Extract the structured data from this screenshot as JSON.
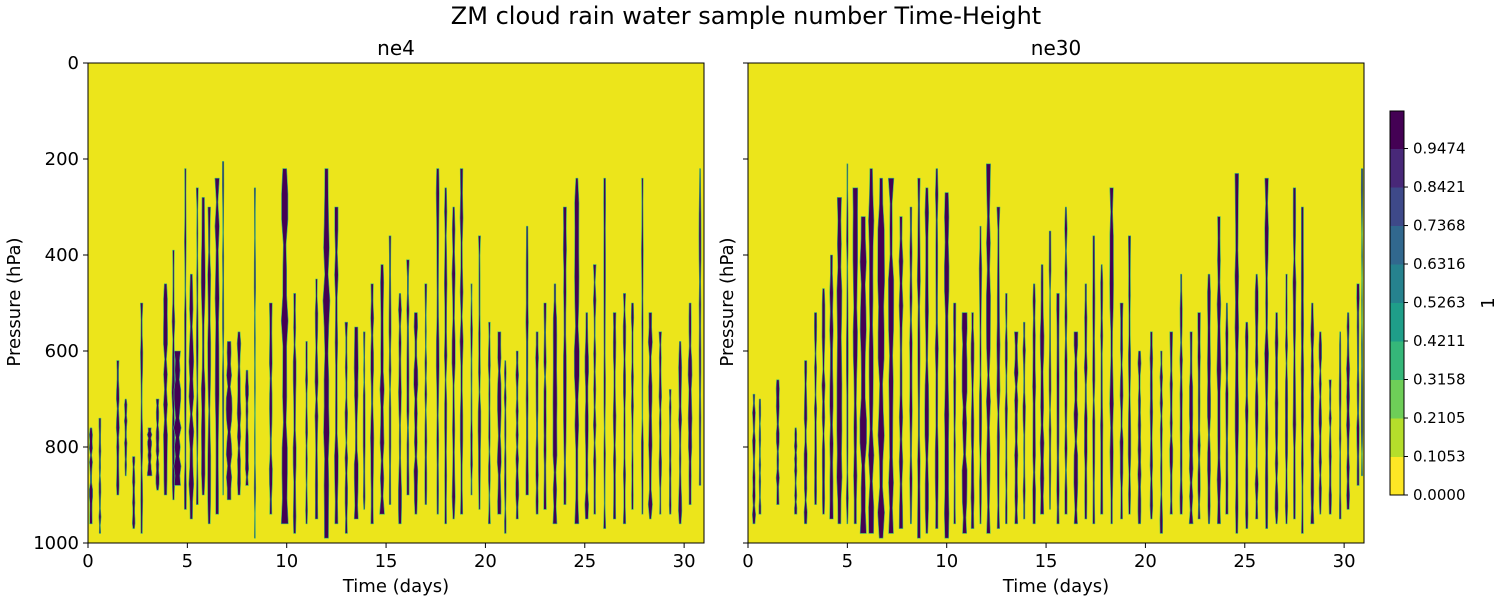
{
  "chart_data": {
    "type": "heatmap",
    "suptitle": "ZM cloud rain water sample number Time-Height",
    "colors": {
      "low": "#ece51b",
      "high": "#440154",
      "edge": "#35b779",
      "axis": "#000000"
    },
    "panels": [
      {
        "title": "ne4",
        "xlabel": "Time (days)",
        "ylabel": "Pressure (hPa)",
        "xlim": [
          0,
          31
        ],
        "ylim": [
          1000,
          0
        ],
        "xticks": [
          0,
          5,
          10,
          15,
          20,
          25,
          30
        ],
        "yticks": [
          0,
          200,
          400,
          600,
          800,
          1000
        ],
        "seed": 7,
        "events": [
          [
            0.15,
            0.12,
            760,
            960
          ],
          [
            0.6,
            0.08,
            740,
            980
          ],
          [
            1.5,
            0.12,
            620,
            900
          ],
          [
            1.9,
            0.1,
            700,
            860
          ],
          [
            2.3,
            0.1,
            820,
            970
          ],
          [
            2.7,
            0.09,
            500,
            980
          ],
          [
            3.1,
            0.18,
            760,
            860
          ],
          [
            3.5,
            0.12,
            700,
            890
          ],
          [
            3.9,
            0.15,
            460,
            900
          ],
          [
            4.3,
            0.12,
            390,
            910
          ],
          [
            4.5,
            0.28,
            600,
            880
          ],
          [
            4.9,
            0.08,
            220,
            930
          ],
          [
            5.2,
            0.18,
            440,
            950
          ],
          [
            5.5,
            0.08,
            260,
            920
          ],
          [
            5.8,
            0.15,
            280,
            900
          ],
          [
            6.1,
            0.12,
            300,
            960
          ],
          [
            6.5,
            0.16,
            240,
            940
          ],
          [
            6.8,
            0.06,
            205,
            900
          ],
          [
            7.1,
            0.22,
            580,
            910
          ],
          [
            7.6,
            0.15,
            560,
            900
          ],
          [
            8.0,
            0.12,
            640,
            880
          ],
          [
            8.4,
            0.06,
            260,
            990
          ],
          [
            9.2,
            0.12,
            500,
            940
          ],
          [
            9.9,
            0.25,
            220,
            960
          ],
          [
            10.4,
            0.12,
            480,
            980
          ],
          [
            11.0,
            0.08,
            580,
            960
          ],
          [
            11.5,
            0.12,
            450,
            950
          ],
          [
            12.0,
            0.25,
            220,
            990
          ],
          [
            12.5,
            0.15,
            300,
            960
          ],
          [
            13.0,
            0.1,
            540,
            980
          ],
          [
            13.5,
            0.15,
            550,
            950
          ],
          [
            13.9,
            0.08,
            560,
            930
          ],
          [
            14.3,
            0.12,
            460,
            960
          ],
          [
            14.8,
            0.18,
            420,
            940
          ],
          [
            15.2,
            0.08,
            360,
            920
          ],
          [
            15.7,
            0.12,
            480,
            960
          ],
          [
            16.1,
            0.1,
            410,
            900
          ],
          [
            16.5,
            0.15,
            520,
            940
          ],
          [
            17.0,
            0.08,
            460,
            920
          ],
          [
            17.6,
            0.12,
            220,
            940
          ],
          [
            18.0,
            0.1,
            260,
            960
          ],
          [
            18.4,
            0.12,
            300,
            950
          ],
          [
            18.8,
            0.12,
            220,
            940
          ],
          [
            19.3,
            0.08,
            460,
            900
          ],
          [
            19.7,
            0.1,
            360,
            930
          ],
          [
            20.2,
            0.08,
            540,
            960
          ],
          [
            20.7,
            0.15,
            560,
            940
          ],
          [
            21.0,
            0.08,
            620,
            980
          ],
          [
            21.6,
            0.12,
            600,
            950
          ],
          [
            22.1,
            0.1,
            340,
            900
          ],
          [
            22.6,
            0.12,
            560,
            940
          ],
          [
            23.0,
            0.1,
            500,
            930
          ],
          [
            23.5,
            0.15,
            460,
            960
          ],
          [
            24.0,
            0.12,
            300,
            920
          ],
          [
            24.6,
            0.18,
            240,
            960
          ],
          [
            25.1,
            0.15,
            520,
            950
          ],
          [
            25.5,
            0.1,
            420,
            940
          ],
          [
            26.0,
            0.08,
            240,
            970
          ],
          [
            26.5,
            0.12,
            520,
            950
          ],
          [
            27.0,
            0.1,
            480,
            960
          ],
          [
            27.4,
            0.1,
            500,
            930
          ],
          [
            27.9,
            0.08,
            240,
            940
          ],
          [
            28.3,
            0.15,
            520,
            950
          ],
          [
            28.8,
            0.1,
            560,
            940
          ],
          [
            29.3,
            0.08,
            680,
            940
          ],
          [
            29.8,
            0.12,
            580,
            960
          ],
          [
            30.3,
            0.15,
            500,
            920
          ],
          [
            30.8,
            0.08,
            220,
            880
          ]
        ]
      },
      {
        "title": "ne30",
        "xlabel": "Time (days)",
        "ylabel": "Pressure (hPa)",
        "xlim": [
          0,
          31
        ],
        "ylim": [
          1000,
          0
        ],
        "xticks": [
          0,
          5,
          10,
          15,
          20,
          25,
          30
        ],
        "yticks": [
          0,
          200,
          400,
          600,
          800,
          1000
        ],
        "seed": 19,
        "events": [
          [
            0.3,
            0.12,
            690,
            960
          ],
          [
            0.6,
            0.08,
            700,
            940
          ],
          [
            1.5,
            0.12,
            660,
            920
          ],
          [
            2.4,
            0.1,
            760,
            940
          ],
          [
            2.9,
            0.12,
            620,
            960
          ],
          [
            3.4,
            0.1,
            520,
            920
          ],
          [
            3.8,
            0.12,
            470,
            940
          ],
          [
            4.2,
            0.16,
            400,
            950
          ],
          [
            4.6,
            0.2,
            280,
            960
          ],
          [
            5.0,
            0.08,
            210,
            960
          ],
          [
            5.4,
            0.18,
            260,
            960
          ],
          [
            5.8,
            0.25,
            320,
            980
          ],
          [
            6.2,
            0.2,
            220,
            980
          ],
          [
            6.7,
            0.25,
            240,
            990
          ],
          [
            7.2,
            0.2,
            240,
            980
          ],
          [
            7.7,
            0.15,
            320,
            970
          ],
          [
            8.2,
            0.1,
            300,
            960
          ],
          [
            8.6,
            0.12,
            240,
            990
          ],
          [
            9.0,
            0.15,
            260,
            980
          ],
          [
            9.5,
            0.12,
            220,
            970
          ],
          [
            10.0,
            0.22,
            270,
            990
          ],
          [
            10.4,
            0.1,
            500,
            960
          ],
          [
            10.9,
            0.2,
            520,
            980
          ],
          [
            11.3,
            0.12,
            520,
            970
          ],
          [
            11.7,
            0.1,
            340,
            960
          ],
          [
            12.1,
            0.15,
            210,
            980
          ],
          [
            12.6,
            0.12,
            300,
            970
          ],
          [
            13.0,
            0.1,
            480,
            960
          ],
          [
            13.5,
            0.15,
            560,
            960
          ],
          [
            13.9,
            0.1,
            540,
            950
          ],
          [
            14.4,
            0.12,
            460,
            960
          ],
          [
            14.8,
            0.15,
            420,
            940
          ],
          [
            15.2,
            0.08,
            350,
            930
          ],
          [
            15.6,
            0.12,
            480,
            960
          ],
          [
            16.0,
            0.1,
            300,
            940
          ],
          [
            16.5,
            0.15,
            560,
            960
          ],
          [
            17.0,
            0.12,
            460,
            950
          ],
          [
            17.4,
            0.1,
            360,
            960
          ],
          [
            17.8,
            0.1,
            420,
            940
          ],
          [
            18.3,
            0.15,
            260,
            960
          ],
          [
            18.8,
            0.12,
            500,
            950
          ],
          [
            19.2,
            0.1,
            360,
            940
          ],
          [
            19.7,
            0.12,
            600,
            960
          ],
          [
            20.3,
            0.12,
            560,
            950
          ],
          [
            20.8,
            0.1,
            600,
            980
          ],
          [
            21.3,
            0.12,
            560,
            940
          ],
          [
            21.8,
            0.1,
            440,
            940
          ],
          [
            22.3,
            0.15,
            560,
            960
          ],
          [
            22.7,
            0.1,
            520,
            950
          ],
          [
            23.2,
            0.12,
            440,
            960
          ],
          [
            23.7,
            0.15,
            320,
            960
          ],
          [
            24.1,
            0.1,
            500,
            940
          ],
          [
            24.6,
            0.15,
            230,
            980
          ],
          [
            25.1,
            0.12,
            540,
            970
          ],
          [
            25.6,
            0.12,
            440,
            950
          ],
          [
            26.1,
            0.15,
            240,
            970
          ],
          [
            26.6,
            0.12,
            520,
            960
          ],
          [
            27.1,
            0.1,
            440,
            960
          ],
          [
            27.5,
            0.12,
            260,
            950
          ],
          [
            27.9,
            0.1,
            300,
            980
          ],
          [
            28.4,
            0.12,
            500,
            960
          ],
          [
            28.8,
            0.1,
            560,
            940
          ],
          [
            29.3,
            0.1,
            660,
            940
          ],
          [
            29.8,
            0.08,
            560,
            950
          ],
          [
            30.2,
            0.12,
            520,
            930
          ],
          [
            30.7,
            0.1,
            460,
            880
          ],
          [
            30.9,
            0.06,
            220,
            860
          ]
        ]
      }
    ],
    "colorbar": {
      "label": "1",
      "ticks": [
        "0.0000",
        "0.1053",
        "0.2105",
        "0.3158",
        "0.4211",
        "0.5263",
        "0.6316",
        "0.7368",
        "0.8421",
        "0.9474"
      ],
      "tick_values": [
        0,
        0.1053,
        0.2105,
        0.3158,
        0.4211,
        0.5263,
        0.6316,
        0.7368,
        0.8421,
        0.9474
      ],
      "vmin": 0,
      "vmax": 1.05
    }
  }
}
